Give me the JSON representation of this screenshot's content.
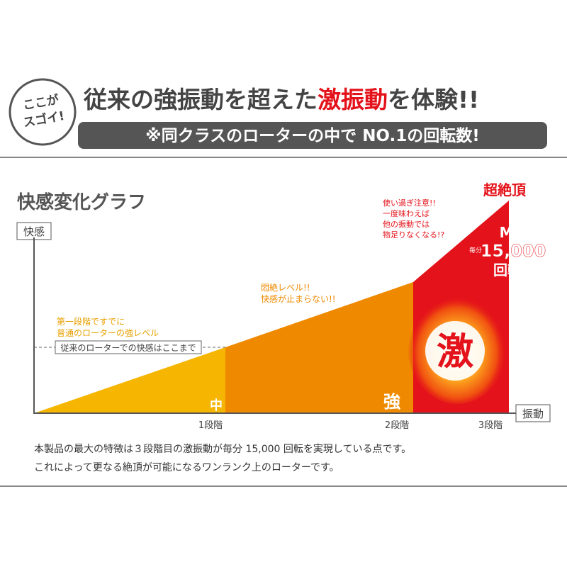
{
  "header": {
    "badge": [
      "ここが",
      "スゴイ!"
    ],
    "headline": {
      "before": "従来の強振動を超えた",
      "highlight": "激振動",
      "after": "を体験!!"
    },
    "subheadline": "※同クラスのローターの中で NO.1の回転数!"
  },
  "graph": {
    "title": "快感変化グラフ",
    "y_axis_label": "快感",
    "x_axis_label": "振動",
    "steps": [
      "1段階",
      "2段階",
      "3段階"
    ],
    "levels": [
      "中",
      "強",
      "激"
    ],
    "baseline_label": "従来のローターでの快感はここまで",
    "notes": {
      "stage1": [
        "第一段階ですでに",
        "普通のローターの強レベル"
      ],
      "stage2": [
        "悶絶レベル!!",
        "快感が止まらない!!"
      ],
      "stage3": [
        "使い過ぎ注意!!",
        "一度味わえば",
        "他の振動では",
        "物足りなくなる!?"
      ]
    },
    "peak": "超絶頂",
    "max": {
      "label": "MAX",
      "per_minute": "毎分",
      "value": "15,000",
      "unit": "回転"
    }
  },
  "description": [
    "本製品の最大の特徴は３段階目の激振動が毎分 15,000 回転を実現している点です。",
    "これによって更なる絶頂が可能になるワンランク上のローターです。"
  ]
}
